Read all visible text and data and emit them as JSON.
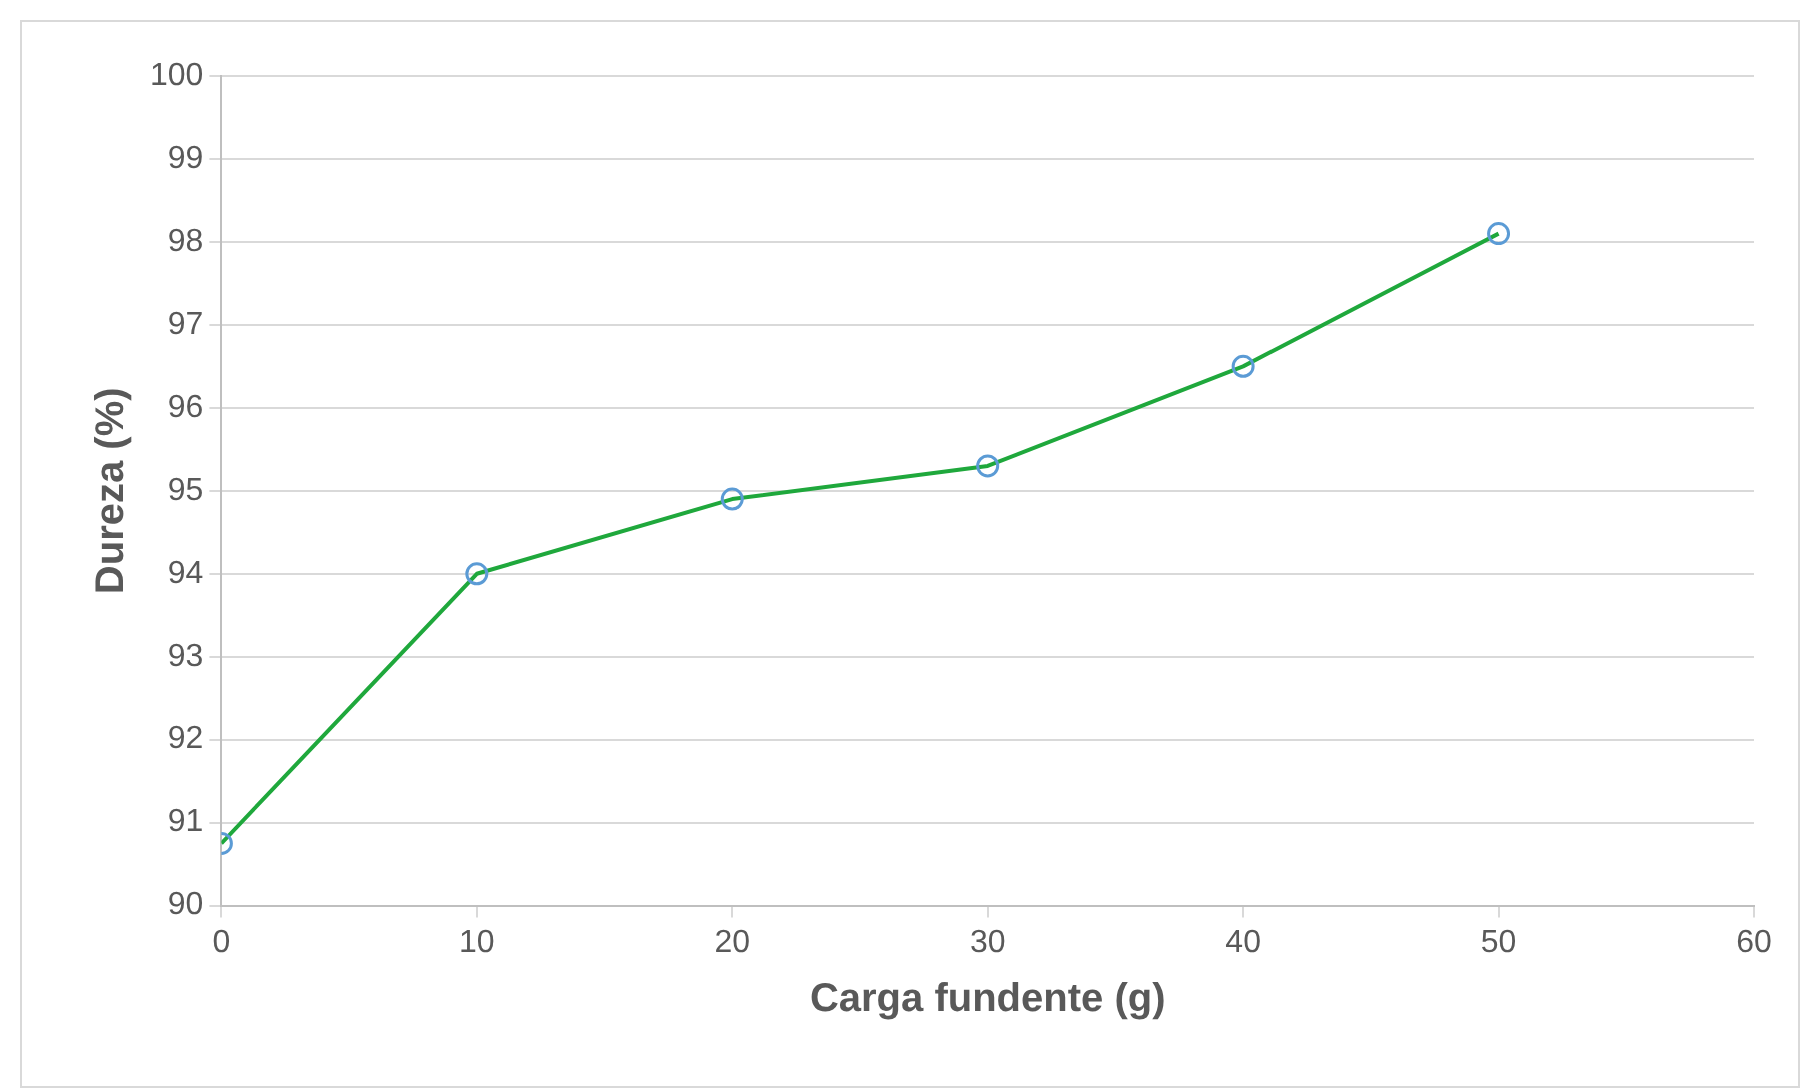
{
  "chart_data": {
    "type": "line",
    "xlabel": "Carga fundente (g)",
    "ylabel": "Dureza (%)",
    "x": [
      0,
      10,
      20,
      30,
      40,
      50
    ],
    "series": [
      {
        "color": "#1fa83c",
        "values": [
          90.75,
          94.0,
          94.9,
          95.3,
          96.5,
          98.1
        ]
      }
    ],
    "xlim": [
      0,
      60
    ],
    "xticks": [
      0,
      10,
      20,
      30,
      40,
      50,
      60
    ],
    "ylim": [
      90,
      100
    ],
    "yticks": [
      90,
      91,
      92,
      93,
      94,
      95,
      96,
      97,
      98,
      99,
      100
    ],
    "grid": "y",
    "legend": false,
    "marker": "circle",
    "line_style": "solid"
  }
}
